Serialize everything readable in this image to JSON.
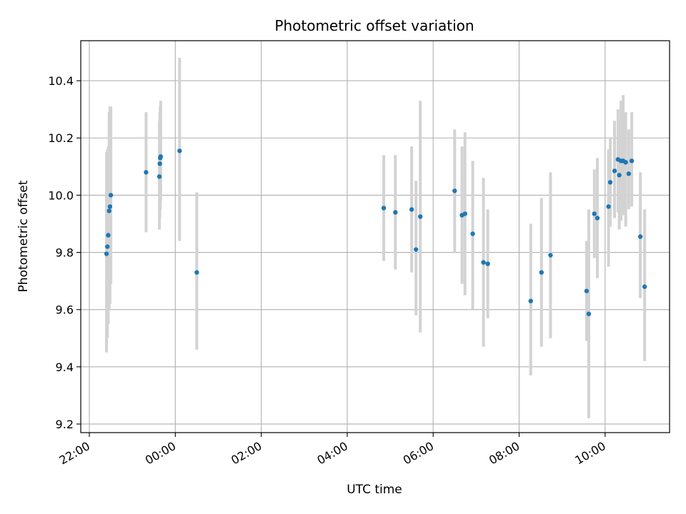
{
  "chart_data": {
    "type": "scatter",
    "title": "Photometric offset variation",
    "xlabel": "UTC time",
    "ylabel": "Photometric offset",
    "x_ticks": [
      {
        "hours": 22,
        "label": "22:00"
      },
      {
        "hours": 24,
        "label": "00:00"
      },
      {
        "hours": 26,
        "label": "02:00"
      },
      {
        "hours": 28,
        "label": "04:00"
      },
      {
        "hours": 30,
        "label": "06:00"
      },
      {
        "hours": 32,
        "label": "08:00"
      },
      {
        "hours": 34,
        "label": "10:00"
      }
    ],
    "y_ticks": [
      9.2,
      9.4,
      9.6,
      9.8,
      10.0,
      10.2,
      10.4
    ],
    "xlim_hours": [
      21.8,
      35.5
    ],
    "ylim": [
      9.17,
      10.54
    ],
    "grid": true,
    "colors": {
      "point": "#1f77b4",
      "errorbar": "#d3d3d3",
      "grid": "#b0b0b0"
    },
    "points": [
      {
        "t": 22.4,
        "y": 9.795,
        "lo": 9.45,
        "hi": 10.15
      },
      {
        "t": 22.42,
        "y": 9.82,
        "lo": 9.5,
        "hi": 10.16
      },
      {
        "t": 22.44,
        "y": 9.86,
        "lo": 9.55,
        "hi": 10.17
      },
      {
        "t": 22.46,
        "y": 9.945,
        "lo": 9.6,
        "hi": 10.29
      },
      {
        "t": 22.48,
        "y": 9.96,
        "lo": 9.62,
        "hi": 10.31
      },
      {
        "t": 22.5,
        "y": 10.0,
        "lo": 9.69,
        "hi": 10.31
      },
      {
        "t": 23.32,
        "y": 10.08,
        "lo": 9.87,
        "hi": 10.29
      },
      {
        "t": 23.63,
        "y": 10.065,
        "lo": 9.88,
        "hi": 10.26
      },
      {
        "t": 23.64,
        "y": 10.11,
        "lo": 9.92,
        "hi": 10.29
      },
      {
        "t": 23.65,
        "y": 10.13,
        "lo": 9.95,
        "hi": 10.31
      },
      {
        "t": 23.66,
        "y": 10.135,
        "lo": 9.98,
        "hi": 10.33
      },
      {
        "t": 24.1,
        "y": 10.155,
        "lo": 9.84,
        "hi": 10.48
      },
      {
        "t": 24.5,
        "y": 9.73,
        "lo": 9.46,
        "hi": 10.01
      },
      {
        "t": 28.85,
        "y": 9.955,
        "lo": 9.77,
        "hi": 10.14
      },
      {
        "t": 29.12,
        "y": 9.94,
        "lo": 9.74,
        "hi": 10.14
      },
      {
        "t": 29.5,
        "y": 9.95,
        "lo": 9.73,
        "hi": 10.17
      },
      {
        "t": 29.6,
        "y": 9.81,
        "lo": 9.58,
        "hi": 10.05
      },
      {
        "t": 29.7,
        "y": 9.925,
        "lo": 9.52,
        "hi": 10.33
      },
      {
        "t": 30.5,
        "y": 10.015,
        "lo": 9.8,
        "hi": 10.23
      },
      {
        "t": 30.67,
        "y": 9.93,
        "lo": 9.69,
        "hi": 10.17
      },
      {
        "t": 30.74,
        "y": 9.935,
        "lo": 9.65,
        "hi": 10.22
      },
      {
        "t": 30.92,
        "y": 9.865,
        "lo": 9.6,
        "hi": 10.12
      },
      {
        "t": 31.17,
        "y": 9.765,
        "lo": 9.47,
        "hi": 10.06
      },
      {
        "t": 31.27,
        "y": 9.76,
        "lo": 9.57,
        "hi": 9.95
      },
      {
        "t": 32.27,
        "y": 9.63,
        "lo": 9.37,
        "hi": 9.9
      },
      {
        "t": 32.52,
        "y": 9.73,
        "lo": 9.47,
        "hi": 9.99
      },
      {
        "t": 32.73,
        "y": 9.79,
        "lo": 9.5,
        "hi": 10.08
      },
      {
        "t": 33.57,
        "y": 9.665,
        "lo": 9.49,
        "hi": 9.84
      },
      {
        "t": 33.62,
        "y": 9.585,
        "lo": 9.22,
        "hi": 9.95
      },
      {
        "t": 33.75,
        "y": 9.935,
        "lo": 9.78,
        "hi": 10.09
      },
      {
        "t": 33.82,
        "y": 9.92,
        "lo": 9.71,
        "hi": 10.13
      },
      {
        "t": 34.08,
        "y": 9.96,
        "lo": 9.75,
        "hi": 10.16
      },
      {
        "t": 34.12,
        "y": 10.045,
        "lo": 9.89,
        "hi": 10.2
      },
      {
        "t": 34.22,
        "y": 10.085,
        "lo": 9.92,
        "hi": 10.26
      },
      {
        "t": 34.3,
        "y": 10.125,
        "lo": 9.94,
        "hi": 10.3
      },
      {
        "t": 34.33,
        "y": 10.07,
        "lo": 9.88,
        "hi": 10.26
      },
      {
        "t": 34.37,
        "y": 10.12,
        "lo": 9.91,
        "hi": 10.33
      },
      {
        "t": 34.42,
        "y": 10.12,
        "lo": 9.93,
        "hi": 10.35
      },
      {
        "t": 34.48,
        "y": 10.115,
        "lo": 9.89,
        "hi": 10.29
      },
      {
        "t": 34.55,
        "y": 10.075,
        "lo": 9.95,
        "hi": 10.23
      },
      {
        "t": 34.62,
        "y": 10.12,
        "lo": 9.96,
        "hi": 10.29
      },
      {
        "t": 34.82,
        "y": 9.855,
        "lo": 9.64,
        "hi": 10.08
      },
      {
        "t": 34.92,
        "y": 9.68,
        "lo": 9.42,
        "hi": 9.95
      }
    ]
  }
}
